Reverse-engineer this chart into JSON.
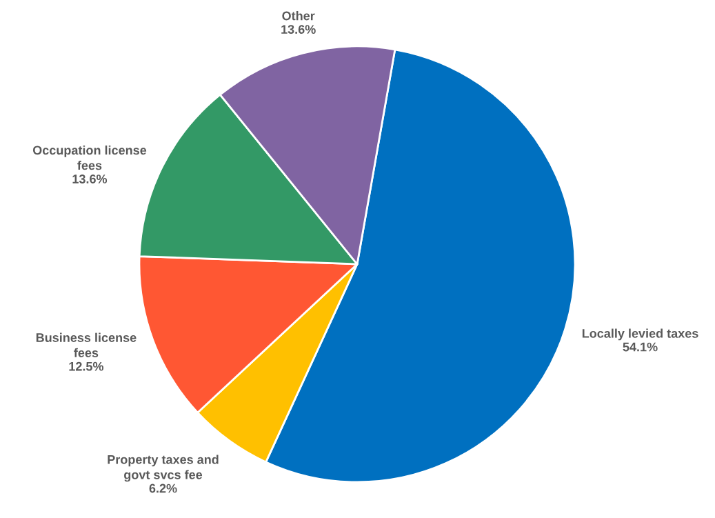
{
  "chart_data": {
    "type": "pie",
    "categories": [
      "Locally levied taxes",
      "Property taxes and\ngovt svcs fee",
      "Business license\nfees",
      "Occupation license\nfees",
      "Other"
    ],
    "values": [
      54.1,
      6.2,
      12.5,
      13.6,
      13.6
    ],
    "colors": [
      "#0070c0",
      "#ffc000",
      "#ff5733",
      "#339966",
      "#8064a2"
    ],
    "value_labels": [
      "54.1%",
      "6.2%",
      "12.5%",
      "13.6%",
      "13.6%"
    ]
  }
}
